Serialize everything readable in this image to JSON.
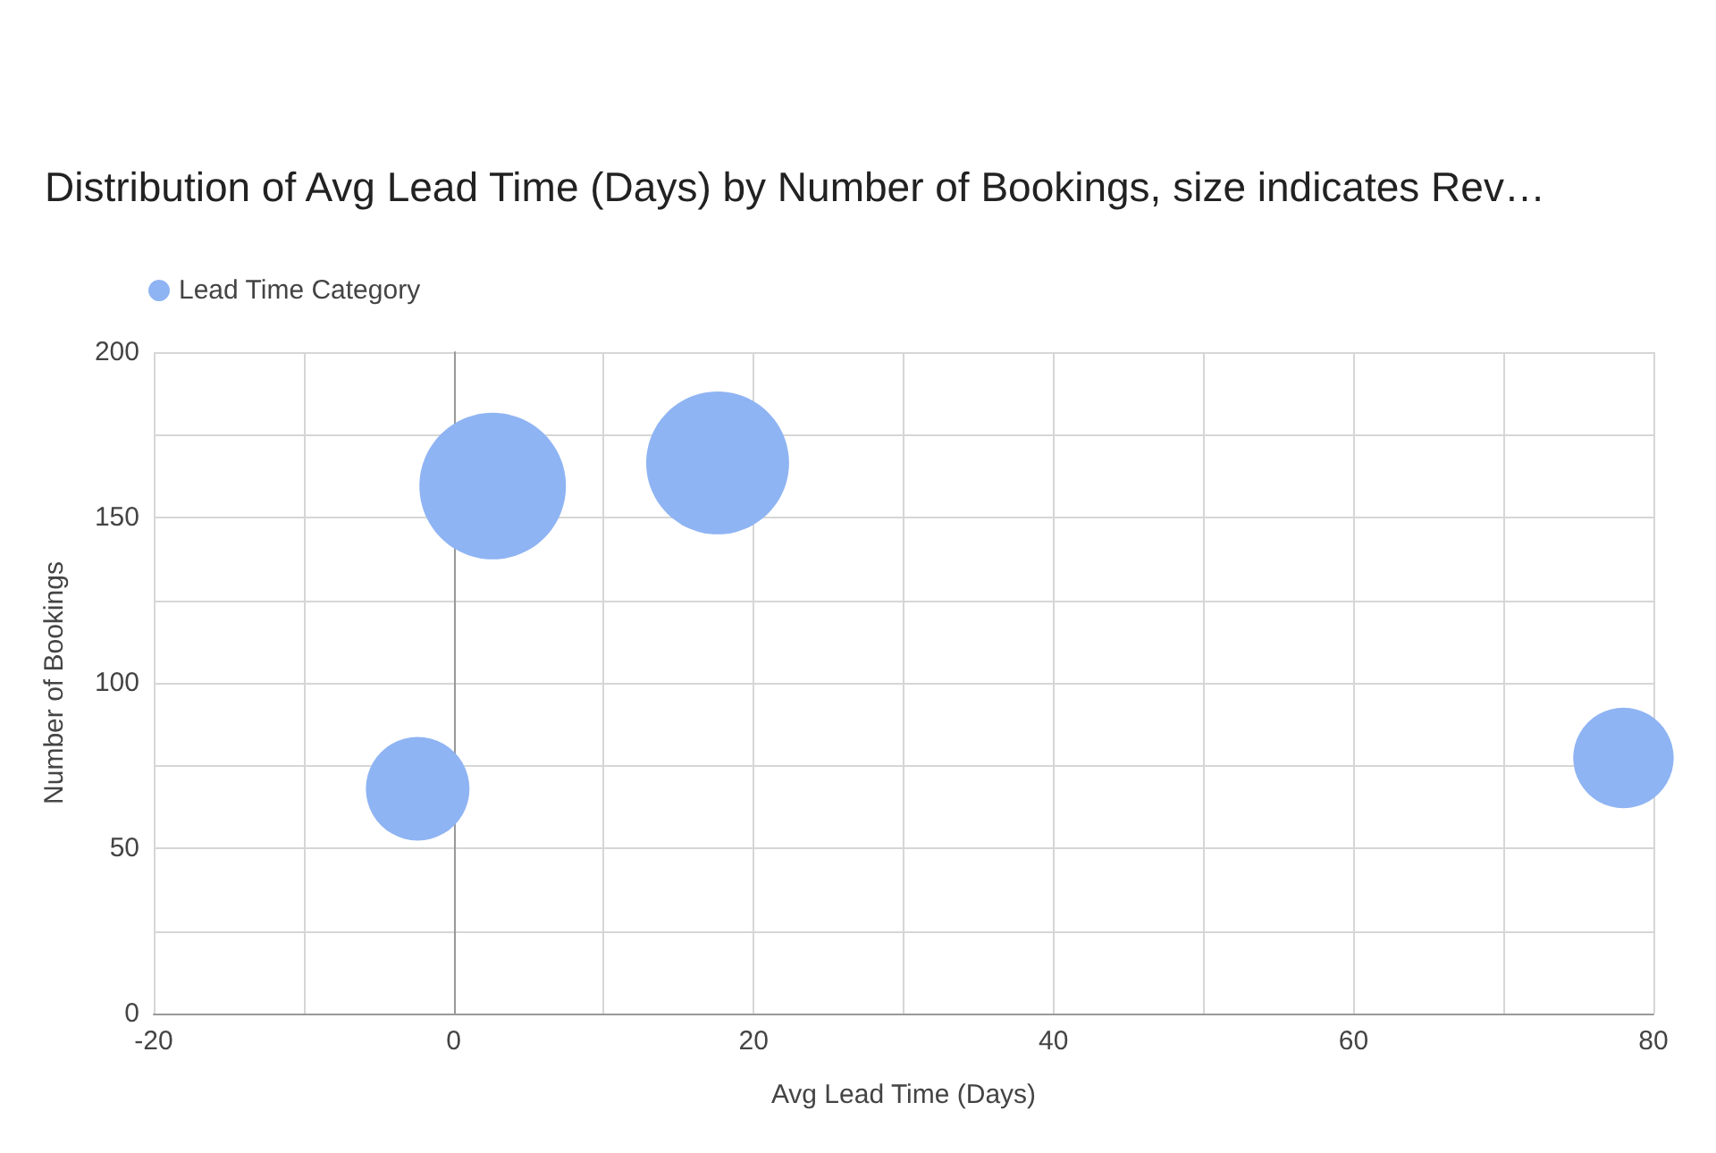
{
  "chart_data": {
    "type": "bubble",
    "title": "Distribution of Avg Lead Time (Days) by Number of Bookings, size indicates Rev…",
    "xlabel": "Avg Lead Time (Days)",
    "ylabel": "Number of Bookings",
    "series": [
      {
        "name": "Lead Time Category",
        "color": "#8fb4f3",
        "x": [
          -2.4,
          2.6,
          17.6,
          78
        ],
        "values": [
          68,
          159.5,
          166.5,
          77.3
        ],
        "sizes": [
          0.5,
          1,
          0.95,
          0.47
        ]
      }
    ],
    "xlim": [
      -20,
      80
    ],
    "xticks": [
      -20,
      {
        "value": -10,
        "label": null
      },
      0,
      {
        "value": 10,
        "label": null
      },
      20,
      {
        "value": 30,
        "label": null
      },
      40,
      {
        "value": 50,
        "label": null
      },
      60,
      {
        "value": 70,
        "label": null
      },
      80
    ],
    "ylim": [
      0,
      200
    ],
    "yticks": [
      0,
      {
        "value": 25,
        "label": null
      },
      50,
      {
        "value": 75,
        "label": null
      },
      100,
      {
        "value": 125,
        "label": null
      },
      150,
      {
        "value": 175,
        "label": null
      },
      200
    ],
    "grid": true,
    "legend": "top left",
    "marker": "circle"
  }
}
